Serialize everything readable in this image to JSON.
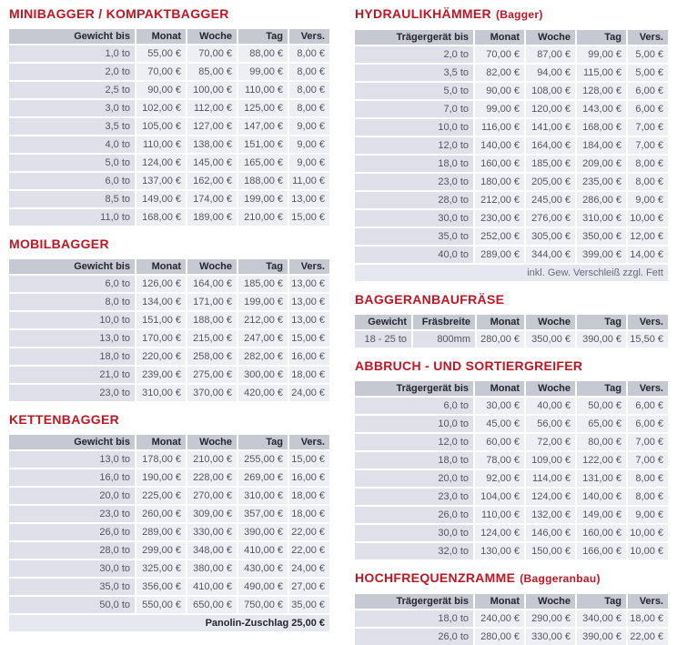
{
  "colors": {
    "title_red": "#be1622",
    "header_bg": "#c6c8d2",
    "header_text": "#26262d",
    "label_bg": "#dfe0e9",
    "value_bg": "#eeeff4",
    "footer_bg": "#e7e8ef",
    "body_text": "#55565c",
    "footer_text": "#6a6b72",
    "page_bg": "#ffffff"
  },
  "document": {
    "columns": [
      {
        "name": "left",
        "sections": [
          {
            "title": "MINIBAGGER / KOMPAKTBAGGER",
            "subtitle": "",
            "headers": [
              "Gewicht bis",
              "Monat",
              "Woche",
              "Tag",
              "Vers."
            ],
            "rows": [
              [
                "1,0 to",
                "55,00 €",
                "70,00 €",
                "88,00 €",
                "8,00 €"
              ],
              [
                "2,0 to",
                "70,00 €",
                "85,00 €",
                "99,00 €",
                "8,00 €"
              ],
              [
                "2,5 to",
                "90,00 €",
                "100,00 €",
                "110,00 €",
                "8,00 €"
              ],
              [
                "3,0 to",
                "102,00 €",
                "112,00 €",
                "125,00 €",
                "8,00 €"
              ],
              [
                "3,5 to",
                "105,00 €",
                "127,00 €",
                "147,00 €",
                "9,00 €"
              ],
              [
                "4,0 to",
                "110,00 €",
                "138,00 €",
                "151,00 €",
                "9,00 €"
              ],
              [
                "5,0 to",
                "124,00 €",
                "145,00 €",
                "165,00 €",
                "9,00 €"
              ],
              [
                "6,0 to",
                "137,00 €",
                "162,00 €",
                "188,00 €",
                "11,00 €"
              ],
              [
                "8,5 to",
                "149,00 €",
                "174,00 €",
                "199,00 €",
                "13,00 €"
              ],
              [
                "11,0 to",
                "168,00 €",
                "189,00 €",
                "210,00 €",
                "15,00 €"
              ]
            ]
          },
          {
            "title": "MOBILBAGGER",
            "subtitle": "",
            "headers": [
              "Gewicht bis",
              "Monat",
              "Woche",
              "Tag",
              "Vers."
            ],
            "rows": [
              [
                "6,0 to",
                "126,00 €",
                "164,00 €",
                "185,00 €",
                "13,00 €"
              ],
              [
                "8,0 to",
                "134,00 €",
                "171,00 €",
                "199,00 €",
                "13,00 €"
              ],
              [
                "10,0 to",
                "151,00 €",
                "188,00 €",
                "212,00 €",
                "13,00 €"
              ],
              [
                "13,0 to",
                "170,00 €",
                "215,00 €",
                "247,00 €",
                "15,00 €"
              ],
              [
                "18,0 to",
                "220,00 €",
                "258,00 €",
                "282,00 €",
                "16,00 €"
              ],
              [
                "21,0 to",
                "239,00 €",
                "275,00 €",
                "300,00 €",
                "18,00 €"
              ],
              [
                "23,0 to",
                "310,00 €",
                "370,00 €",
                "420,00 €",
                "24,00 €"
              ]
            ]
          },
          {
            "title": "KETTENBAGGER",
            "subtitle": "",
            "headers": [
              "Gewicht bis",
              "Monat",
              "Woche",
              "Tag",
              "Vers."
            ],
            "rows": [
              [
                "13,0 to",
                "178,00 €",
                "210,00 €",
                "255,00 €",
                "15,00 €"
              ],
              [
                "16,0 to",
                "190,00 €",
                "228,00 €",
                "269,00 €",
                "16,00 €"
              ],
              [
                "20,0 to",
                "225,00 €",
                "270,00 €",
                "310,00 €",
                "18,00 €"
              ],
              [
                "23,0 to",
                "260,00 €",
                "309,00 €",
                "357,00 €",
                "18,00 €"
              ],
              [
                "26,0 to",
                "289,00 €",
                "330,00 €",
                "390,00 €",
                "22,00 €"
              ],
              [
                "28,0 to",
                "299,00 €",
                "348,00 €",
                "410,00 €",
                "22,00 €"
              ],
              [
                "30,0 to",
                "325,00 €",
                "380,00 €",
                "430,00 €",
                "24,00 €"
              ],
              [
                "35,0 to",
                "356,00 €",
                "410,00 €",
                "490,00 €",
                "27,00 €"
              ],
              [
                "50,0 to",
                "550,00 €",
                "650,00 €",
                "750,00 €",
                "35,00 €"
              ]
            ],
            "footer": {
              "text": "Panolin-Zuschlag 25,00 €",
              "bold": true
            }
          }
        ]
      },
      {
        "name": "right",
        "sections": [
          {
            "title": "HYDRAULIKHÄMMER",
            "subtitle": "(Bagger)",
            "headers": [
              "Trägergerät bis",
              "Monat",
              "Woche",
              "Tag",
              "Vers."
            ],
            "rows": [
              [
                "2,0 to",
                "70,00 €",
                "87,00 €",
                "99,00 €",
                "5,00 €"
              ],
              [
                "3,5 to",
                "82,00 €",
                "94,00 €",
                "115,00 €",
                "5,00 €"
              ],
              [
                "5,0 to",
                "90,00 €",
                "108,00 €",
                "128,00 €",
                "6,00 €"
              ],
              [
                "7,0 to",
                "99,00 €",
                "120,00 €",
                "143,00 €",
                "6,00 €"
              ],
              [
                "10,0 to",
                "116,00 €",
                "141,00 €",
                "168,00 €",
                "7,00 €"
              ],
              [
                "12,0 to",
                "140,00 €",
                "164,00 €",
                "184,00 €",
                "7,00 €"
              ],
              [
                "18,0 to",
                "160,00 €",
                "185,00 €",
                "209,00 €",
                "8,00 €"
              ],
              [
                "23,0 to",
                "180,00 €",
                "205,00 €",
                "235,00 €",
                "8,00 €"
              ],
              [
                "28,0 to",
                "212,00 €",
                "245,00 €",
                "286,00 €",
                "9,00 €"
              ],
              [
                "30,0 to",
                "230,00 €",
                "276,00 €",
                "310,00 €",
                "10,00 €"
              ],
              [
                "35,0 to",
                "252,00 €",
                "305,00 €",
                "350,00 €",
                "12,00 €"
              ],
              [
                "40,0 to",
                "289,00 €",
                "344,00 €",
                "399,00 €",
                "14,00 €"
              ]
            ],
            "footer": {
              "text": "inkl. Gew. Verschleiß zzgl. Fett",
              "bold": false
            }
          },
          {
            "title": "BAGGERANBAUFRÄSE",
            "subtitle": "",
            "headers": [
              "Gewicht",
              "Fräsbreite",
              "Monat",
              "Woche",
              "Tag",
              "Vers."
            ],
            "rows": [
              [
                "18 - 25 to",
                "800mm",
                "280,00 €",
                "350,00 €",
                "390,00 €",
                "15,50 €"
              ]
            ]
          },
          {
            "title": "ABBRUCH - UND SORTIERGREIFER",
            "subtitle": "",
            "headers": [
              "Trägergerät bis",
              "Monat",
              "Woche",
              "Tag",
              "Vers."
            ],
            "rows": [
              [
                "6,0 to",
                "30,00 €",
                "40,00 €",
                "50,00 €",
                "6,00 €"
              ],
              [
                "10,0 to",
                "45,00 €",
                "56,00 €",
                "65,00 €",
                "6,00 €"
              ],
              [
                "12,0 to",
                "60,00 €",
                "72,00 €",
                "80,00 €",
                "7,00 €"
              ],
              [
                "18,0 to",
                "78,00 €",
                "109,00 €",
                "122,00 €",
                "7,00 €"
              ],
              [
                "20,0 to",
                "92,00 €",
                "114,00 €",
                "131,00 €",
                "8,00 €"
              ],
              [
                "23,0 to",
                "104,00 €",
                "124,00 €",
                "140,00 €",
                "8,00 €"
              ],
              [
                "26,0 to",
                "110,00 €",
                "132,00 €",
                "149,00 €",
                "9,00 €"
              ],
              [
                "30,0 to",
                "124,00 €",
                "146,00 €",
                "160,00 €",
                "10,00 €"
              ],
              [
                "32,0 to",
                "130,00 €",
                "150,00 €",
                "166,00 €",
                "10,00 €"
              ]
            ]
          },
          {
            "title": "HOCHFREQUENZRAMME",
            "subtitle": "(Baggeranbau)",
            "headers": [
              "Trägergerät bis",
              "Monat",
              "Woche",
              "Tag",
              "Vers."
            ],
            "rows": [
              [
                "18,0 to",
                "240,00 €",
                "290,00 €",
                "340,00 €",
                "18,00 €"
              ],
              [
                "26,0 to",
                "280,00 €",
                "330,00 €",
                "390,00 €",
                "22,00 €"
              ]
            ]
          }
        ]
      }
    ]
  }
}
